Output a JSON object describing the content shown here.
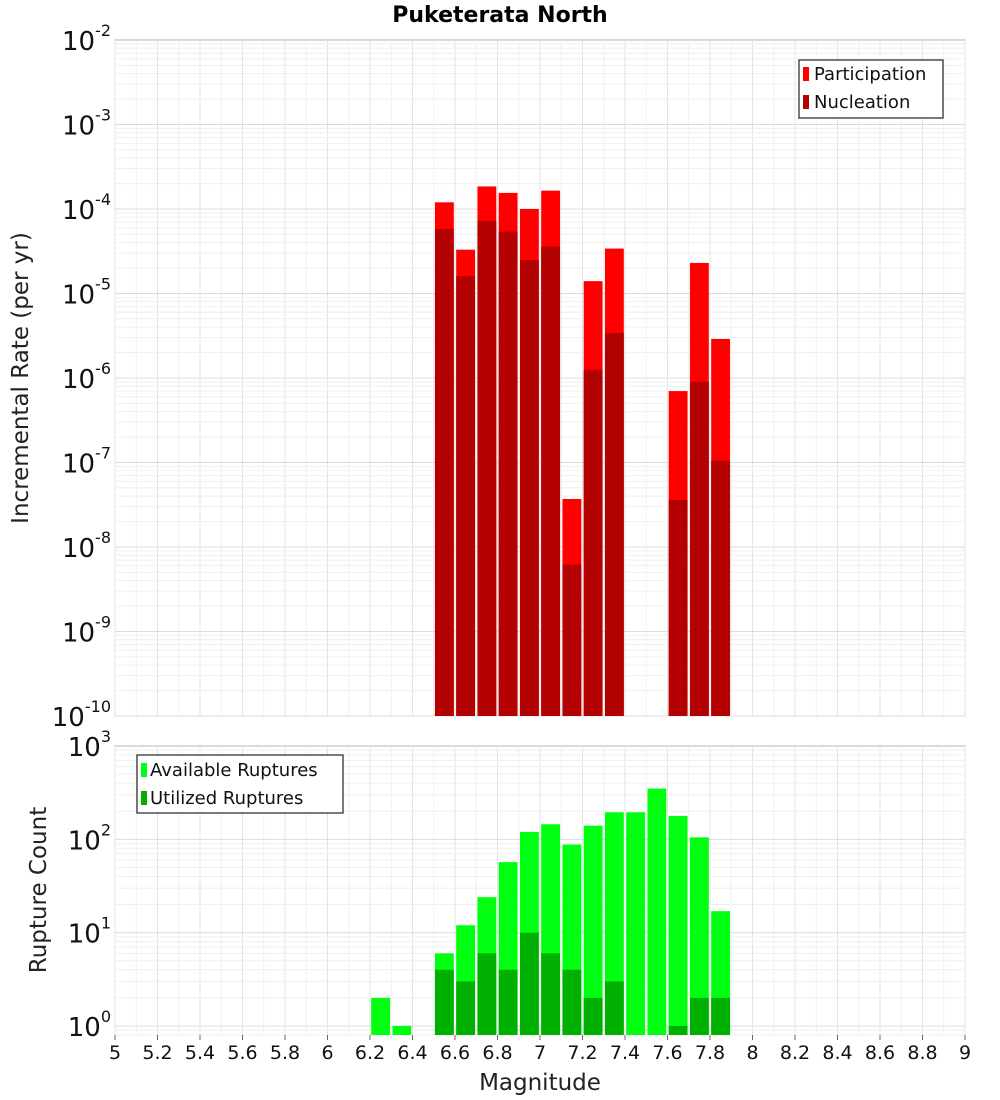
{
  "chart_data": [
    {
      "type": "bar",
      "title": "Puketerata North",
      "xlabel": "",
      "ylabel": "Incremental Rate (per yr)",
      "yscale": "log",
      "ylim": [
        1e-10,
        0.01
      ],
      "xlim": [
        5,
        9
      ],
      "grid": true,
      "legend_position": "top-right",
      "x": [
        6.55,
        6.65,
        6.75,
        6.85,
        6.95,
        7.05,
        7.15,
        7.25,
        7.35,
        7.65,
        7.75,
        7.85
      ],
      "series": [
        {
          "name": "Participation",
          "color": "#ff0000",
          "values": [
            0.00012,
            3.3e-05,
            0.000185,
            0.000155,
            0.0001,
            0.000165,
            3.7e-08,
            1.4e-05,
            3.4e-05,
            7e-07,
            2.3e-05,
            2.9e-06
          ]
        },
        {
          "name": "Nucleation",
          "color": "#b30000",
          "values": [
            5.8e-05,
            1.6e-05,
            7.2e-05,
            5.4e-05,
            2.5e-05,
            3.6e-05,
            6.2e-09,
            1.25e-06,
            3.4e-06,
            3.6e-08,
            9e-07,
            1.05e-07
          ]
        }
      ],
      "yticks": [
        {
          "base": "10",
          "exp": "-2",
          "value": 0.01
        },
        {
          "base": "10",
          "exp": "-3",
          "value": 0.001
        },
        {
          "base": "10",
          "exp": "-4",
          "value": 0.0001
        },
        {
          "base": "10",
          "exp": "-5",
          "value": 1e-05
        },
        {
          "base": "10",
          "exp": "-6",
          "value": 1e-06
        },
        {
          "base": "10",
          "exp": "-7",
          "value": 1e-07
        },
        {
          "base": "10",
          "exp": "-8",
          "value": 1e-08
        },
        {
          "base": "10",
          "exp": "-9",
          "value": 1e-09
        },
        {
          "base": "10",
          "exp": "-10",
          "value": 1e-10
        }
      ]
    },
    {
      "type": "bar",
      "title": "",
      "xlabel": "Magnitude",
      "ylabel": "Rupture Count",
      "yscale": "log",
      "ylim": [
        0.8,
        1000
      ],
      "xlim": [
        5,
        9
      ],
      "grid": true,
      "legend_position": "top-left",
      "x": [
        6.25,
        6.35,
        6.55,
        6.65,
        6.75,
        6.85,
        6.95,
        7.05,
        7.15,
        7.25,
        7.35,
        7.45,
        7.55,
        7.65,
        7.75,
        7.85
      ],
      "series": [
        {
          "name": "Available Ruptures",
          "color": "#00ff11",
          "values": [
            2,
            1,
            6,
            12,
            24,
            57,
            120,
            145,
            88,
            140,
            195,
            195,
            350,
            178,
            105,
            17
          ]
        },
        {
          "name": "Utilized Ruptures",
          "color": "#00b000",
          "values": [
            0,
            0,
            4,
            3,
            6,
            4,
            10,
            6,
            4,
            2,
            3,
            0,
            0,
            1,
            2,
            2
          ]
        }
      ],
      "yticks": [
        {
          "base": "10",
          "exp": "3",
          "value": 1000
        },
        {
          "base": "10",
          "exp": "2",
          "value": 100
        },
        {
          "base": "10",
          "exp": "1",
          "value": 10
        },
        {
          "base": "10",
          "exp": "0",
          "value": 1
        }
      ],
      "xticks": [
        "5",
        "5.2",
        "5.4",
        "5.6",
        "5.8",
        "6",
        "6.2",
        "6.4",
        "6.6",
        "6.8",
        "7",
        "7.2",
        "7.4",
        "7.6",
        "7.8",
        "8",
        "8.2",
        "8.4",
        "8.6",
        "8.8",
        "9"
      ]
    }
  ]
}
